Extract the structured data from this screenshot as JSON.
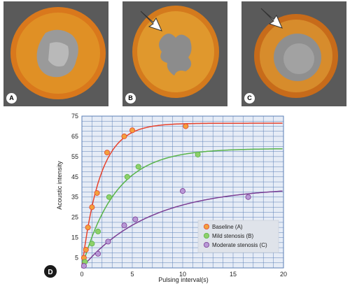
{
  "panels": [
    {
      "letter": "A",
      "arrow": false
    },
    {
      "letter": "B",
      "arrow": true
    },
    {
      "letter": "C",
      "arrow": true
    }
  ],
  "figure_letter": "D",
  "colors": {
    "baseline": "#e8432d",
    "mild": "#58b449",
    "moderate": "#7a3d94",
    "baseline_fill": "#f2a03d",
    "mild_fill": "#8fd06a",
    "moderate_fill": "#b898d6",
    "plot_bg": "#e6ecf6",
    "grid": "#5b7fb5",
    "legend_bg": "#dfe3ea"
  },
  "chart_data": {
    "type": "scatter",
    "xlabel": "Pulsing interval(s)",
    "ylabel": "Acoustic intensity",
    "xlim": [
      0,
      20
    ],
    "ylim": [
      0,
      75
    ],
    "xticks": [
      "0",
      "5",
      "10",
      "15",
      "20"
    ],
    "yticks": [
      "5",
      "15",
      "25",
      "35",
      "45",
      "55",
      "65",
      "75"
    ],
    "grid": true,
    "legend_position": "bottom-right",
    "series": [
      {
        "name": "Baseline (A)",
        "points": [
          [
            0.2,
            5
          ],
          [
            0.4,
            9
          ],
          [
            0.6,
            20
          ],
          [
            1.0,
            30
          ],
          [
            1.5,
            37
          ],
          [
            2.5,
            57
          ],
          [
            4.2,
            65
          ],
          [
            5.0,
            68
          ],
          [
            10.3,
            70
          ]
        ],
        "fit": {
          "ymax": 71.5,
          "k": 0.55
        }
      },
      {
        "name": "Mild stenosis (B)",
        "points": [
          [
            0.3,
            3
          ],
          [
            1.0,
            12
          ],
          [
            1.6,
            18
          ],
          [
            2.7,
            35
          ],
          [
            4.5,
            45
          ],
          [
            5.6,
            50
          ],
          [
            11.5,
            56
          ]
        ],
        "fit": {
          "ymax": 59,
          "k": 0.3
        }
      },
      {
        "name": "Moderate stenosis (C)",
        "points": [
          [
            0.2,
            1
          ],
          [
            1.6,
            7
          ],
          [
            2.6,
            13
          ],
          [
            4.2,
            21
          ],
          [
            5.3,
            24
          ],
          [
            10.0,
            38
          ],
          [
            16.5,
            35
          ]
        ],
        "fit": {
          "ymax": 40,
          "k": 0.15
        }
      }
    ]
  }
}
